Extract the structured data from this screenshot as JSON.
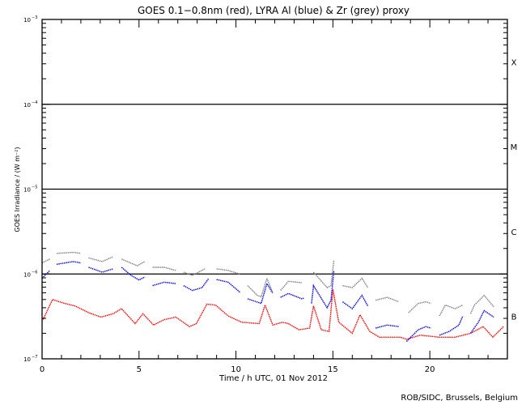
{
  "chart_data": {
    "type": "scatter",
    "title": "GOES 0.1−0.8nm (red), LYRA Al (blue) & Zr (grey) proxy",
    "xlabel": "Time / h UTC, 01 Nov 2012",
    "ylabel": "GOES Irradiance / (W m⁻²)",
    "xlim": [
      0,
      24
    ],
    "ylim": [
      1e-07,
      0.001
    ],
    "yscale": "log",
    "x_ticks": [
      0,
      5,
      10,
      15,
      20
    ],
    "x_tick_labels": [
      "0",
      "5",
      "10",
      "15",
      "20"
    ],
    "y_ticks": [
      1e-07,
      1e-06,
      1e-05,
      0.0001,
      0.001
    ],
    "y_tick_labels": [
      {
        "base": "10",
        "exp": "-7"
      },
      {
        "base": "10",
        "exp": "-6"
      },
      {
        "base": "10",
        "exp": "-5"
      },
      {
        "base": "10",
        "exp": "-4"
      },
      {
        "base": "10",
        "exp": "-3"
      }
    ],
    "reference_lines": [
      0.0001,
      1e-05,
      1e-06
    ],
    "flare_classes": [
      {
        "label": "X",
        "center": 0.000316
      },
      {
        "label": "M",
        "center": 3.16e-05
      },
      {
        "label": "C",
        "center": 3.16e-06
      },
      {
        "label": "B",
        "center": 3.16e-07
      }
    ],
    "series": [
      {
        "name": "GOES 0.1-0.8nm",
        "color": "#ff0000",
        "points": [
          [
            0.05,
            2.9e-07
          ],
          [
            0.54,
            5e-07
          ],
          [
            1.17,
            4.5e-07
          ],
          [
            1.7,
            4.2e-07
          ],
          [
            2.4,
            3.5e-07
          ],
          [
            3.04,
            3.1e-07
          ],
          [
            3.67,
            3.4e-07
          ],
          [
            4.1,
            3.9e-07
          ],
          [
            4.8,
            2.6e-07
          ],
          [
            5.2,
            3.4e-07
          ],
          [
            5.75,
            2.5e-07
          ],
          [
            6.3,
            2.9e-07
          ],
          [
            6.9,
            3.1e-07
          ],
          [
            7.6,
            2.4e-07
          ],
          [
            7.96,
            2.6e-07
          ],
          [
            8.5,
            4.4e-07
          ],
          [
            8.95,
            4.3e-07
          ],
          [
            9.6,
            3.2e-07
          ],
          [
            10.3,
            2.7e-07
          ],
          [
            11.2,
            2.6e-07
          ],
          [
            11.5,
            4.3e-07
          ],
          [
            11.9,
            2.5e-07
          ],
          [
            12.4,
            2.7e-07
          ],
          [
            12.7,
            2.6e-07
          ],
          [
            13.25,
            2.2e-07
          ],
          [
            13.8,
            2.3e-07
          ],
          [
            14.0,
            4.2e-07
          ],
          [
            14.4,
            2.2e-07
          ],
          [
            14.8,
            2.1e-07
          ],
          [
            15.0,
            6.6e-07
          ],
          [
            15.3,
            2.7e-07
          ],
          [
            16.0,
            2e-07
          ],
          [
            16.4,
            3.3e-07
          ],
          [
            16.9,
            2.1e-07
          ],
          [
            17.4,
            1.8e-07
          ],
          [
            18.5,
            1.8e-07
          ],
          [
            18.8,
            1.7e-07
          ],
          [
            19.5,
            1.9e-07
          ],
          [
            20.5,
            1.8e-07
          ],
          [
            21.3,
            1.8e-07
          ],
          [
            22.1,
            2e-07
          ],
          [
            22.75,
            2.4e-07
          ],
          [
            23.25,
            1.8e-07
          ],
          [
            23.8,
            2.4e-07
          ]
        ]
      },
      {
        "name": "LYRA Al proxy",
        "color": "#0000ff",
        "points": [
          [
            0,
            8.9e-07
          ],
          [
            0.4,
            1.1e-06
          ],
          null,
          [
            0.75,
            1.3e-06
          ],
          [
            1.6,
            1.4e-06
          ],
          [
            2.0,
            1.35e-06
          ],
          null,
          [
            2.4,
            1.2e-06
          ],
          [
            3.1,
            1.05e-06
          ],
          [
            3.67,
            1.15e-06
          ],
          null,
          [
            4.1,
            1.2e-06
          ],
          [
            4.6,
            9.6e-07
          ],
          [
            5.0,
            8.5e-07
          ],
          [
            5.3,
            9.2e-07
          ],
          null,
          [
            5.7,
            7.3e-07
          ],
          [
            6.3,
            8e-07
          ],
          [
            6.9,
            7.7e-07
          ],
          null,
          [
            7.3,
            7.3e-07
          ],
          [
            7.75,
            6.4e-07
          ],
          [
            8.25,
            6.9e-07
          ],
          [
            8.6,
            8.9e-07
          ],
          null,
          [
            9.0,
            8.6e-07
          ],
          [
            9.6,
            8e-07
          ],
          [
            10.2,
            6.1e-07
          ],
          null,
          [
            10.6,
            5.1e-07
          ],
          [
            11.3,
            4.5e-07
          ],
          [
            11.6,
            7.7e-07
          ],
          [
            11.9,
            5.9e-07
          ],
          null,
          [
            12.3,
            5.3e-07
          ],
          [
            12.7,
            5.9e-07
          ],
          [
            13.4,
            5.1e-07
          ],
          [
            13.5,
            5.2e-07
          ],
          null,
          [
            13.9,
            4.5e-07
          ],
          [
            14.0,
            7.3e-07
          ],
          [
            14.7,
            4e-07
          ],
          [
            14.9,
            4.9e-07
          ],
          [
            15.05,
            1.1e-06
          ],
          null,
          [
            15.5,
            4.7e-07
          ],
          [
            16.0,
            3.9e-07
          ],
          [
            16.5,
            5.6e-07
          ],
          [
            16.8,
            4.2e-07
          ],
          null,
          [
            17.2,
            2.3e-07
          ],
          [
            17.8,
            2.5e-07
          ],
          [
            18.4,
            2.4e-07
          ],
          null,
          [
            18.8,
            1.6e-07
          ],
          [
            19.4,
            2.2e-07
          ],
          [
            19.8,
            2.4e-07
          ],
          [
            20.05,
            2.3e-07
          ],
          null,
          [
            20.5,
            1.9e-07
          ],
          [
            21.0,
            2.1e-07
          ],
          [
            21.5,
            2.5e-07
          ],
          [
            21.7,
            3.2e-07
          ],
          null,
          [
            22.1,
            2e-07
          ],
          [
            22.5,
            2.7e-07
          ],
          [
            22.8,
            3.7e-07
          ],
          [
            23.3,
            3.1e-07
          ],
          null,
          [
            23.8,
            3.3e-07
          ]
        ]
      },
      {
        "name": "LYRA Zr proxy",
        "color": "#808080",
        "points": [
          [
            0,
            1.35e-06
          ],
          [
            0.4,
            1.5e-06
          ],
          null,
          [
            0.75,
            1.75e-06
          ],
          [
            1.6,
            1.8e-06
          ],
          [
            2.0,
            1.75e-06
          ],
          null,
          [
            2.4,
            1.55e-06
          ],
          [
            3.1,
            1.4e-06
          ],
          [
            3.67,
            1.6e-06
          ],
          null,
          [
            4.1,
            1.5e-06
          ],
          [
            4.9,
            1.25e-06
          ],
          [
            5.3,
            1.4e-06
          ],
          null,
          [
            5.7,
            1.2e-06
          ],
          [
            6.3,
            1.2e-06
          ],
          [
            6.9,
            1.1e-06
          ],
          null,
          [
            7.3,
            1.05e-06
          ],
          [
            7.75,
            9.6e-07
          ],
          [
            8.4,
            1.15e-06
          ],
          null,
          [
            9.0,
            1.15e-06
          ],
          [
            9.6,
            1.1e-06
          ],
          [
            10.2,
            1e-06
          ],
          null,
          [
            10.6,
            7.3e-07
          ],
          [
            11.1,
            5.6e-07
          ],
          [
            11.3,
            5.4e-07
          ],
          [
            11.6,
            8.9e-07
          ],
          [
            11.9,
            6e-07
          ],
          null,
          [
            12.3,
            6.4e-07
          ],
          [
            12.7,
            8.2e-07
          ],
          [
            13.4,
            7.9e-07
          ],
          null,
          [
            14.0,
            1.05e-06
          ],
          [
            14.7,
            6.9e-07
          ],
          [
            14.9,
            7.3e-07
          ],
          [
            15.05,
            1.45e-06
          ],
          null,
          [
            15.5,
            7.3e-07
          ],
          [
            16.0,
            6.9e-07
          ],
          [
            16.5,
            8.9e-07
          ],
          [
            16.8,
            6.9e-07
          ],
          null,
          [
            17.2,
            4.9e-07
          ],
          [
            17.8,
            5.3e-07
          ],
          [
            18.4,
            4.7e-07
          ],
          null,
          [
            18.9,
            3.5e-07
          ],
          [
            19.4,
            4.5e-07
          ],
          [
            19.8,
            4.7e-07
          ],
          [
            20.05,
            4.5e-07
          ],
          null,
          [
            20.5,
            3.2e-07
          ],
          [
            20.8,
            4.3e-07
          ],
          [
            21.3,
            3.9e-07
          ],
          [
            21.7,
            4.3e-07
          ],
          null,
          [
            22.1,
            3.4e-07
          ],
          [
            22.3,
            4.3e-07
          ],
          [
            22.8,
            5.6e-07
          ],
          [
            23.3,
            4.1e-07
          ],
          null,
          [
            23.8,
            4.3e-07
          ]
        ]
      }
    ],
    "credit": "ROB/SIDC, Brussels, Belgium"
  }
}
